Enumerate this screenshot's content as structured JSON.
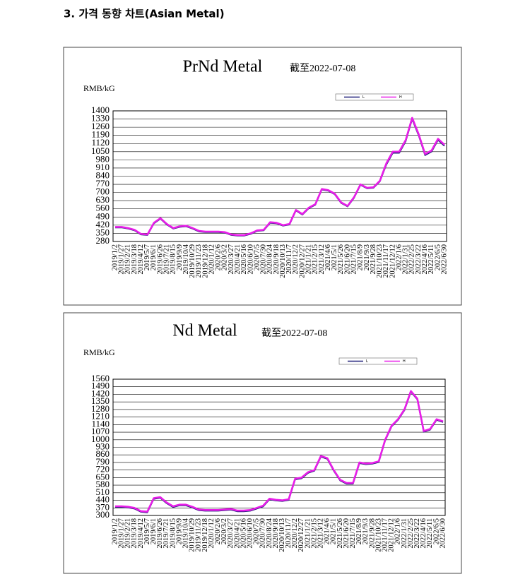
{
  "heading": "3. 가격 동향 차트(Asian Metal)",
  "chart_data": [
    {
      "type": "line",
      "title": "PrNd Metal",
      "subtitle": "截至2022-07-08",
      "y_label": "RMB/kG",
      "categories": [
        "2019/1/2",
        "2019/1/27",
        "2019/2/21",
        "2019/3/18",
        "2019/4/12",
        "2019/5/7",
        "2019/6/1",
        "2019/6/26",
        "2019/7/21",
        "2019/8/15",
        "2019/9/9",
        "2019/10/4",
        "2019/10/29",
        "2019/11/23",
        "2019/12/18",
        "2020/1/12",
        "2020/2/6",
        "2020/3/2",
        "2020/3/27",
        "2020/4/21",
        "2020/5/16",
        "2020/6/10",
        "2020/7/5",
        "2020/7/30",
        "2020/8/24",
        "2020/9/18",
        "2020/10/13",
        "2020/11/7",
        "2020/12/2",
        "2020/12/27",
        "2021/1/21",
        "2021/2/15",
        "2021/3/12",
        "2021/4/6",
        "2021/5/1",
        "2021/5/26",
        "2021/6/20",
        "2021/7/15",
        "2021/8/9",
        "2021/9/3",
        "2021/9/28",
        "2021/10/23",
        "2021/11/17",
        "2021/12/12",
        "2022/1/6",
        "2022/1/31",
        "2022/2/25",
        "2022/3/22",
        "2022/4/16",
        "2022/5/11",
        "2022/6/5",
        "2022/6/30"
      ],
      "series": [
        {
          "name": "L",
          "color": "#1c1c78",
          "values": [
            400,
            400,
            390,
            375,
            340,
            335,
            435,
            475,
            425,
            390,
            405,
            410,
            390,
            365,
            360,
            360,
            360,
            355,
            335,
            330,
            330,
            345,
            370,
            375,
            440,
            435,
            415,
            425,
            545,
            510,
            565,
            595,
            725,
            715,
            685,
            610,
            580,
            655,
            765,
            735,
            740,
            795,
            940,
            1040,
            1040,
            1140,
            1330,
            1190,
            1020,
            1050,
            1150,
            1100
          ]
        },
        {
          "name": "H",
          "color": "#e81ee8",
          "values": [
            405,
            405,
            395,
            380,
            345,
            340,
            440,
            480,
            430,
            395,
            410,
            415,
            395,
            370,
            365,
            365,
            365,
            360,
            340,
            335,
            335,
            350,
            375,
            380,
            445,
            440,
            420,
            430,
            550,
            515,
            570,
            600,
            730,
            720,
            690,
            615,
            585,
            660,
            770,
            740,
            745,
            800,
            950,
            1050,
            1050,
            1150,
            1340,
            1200,
            1030,
            1060,
            1160,
            1110
          ]
        }
      ],
      "ylim": [
        280,
        1400
      ],
      "yticks": [
        280,
        350,
        420,
        490,
        560,
        630,
        700,
        770,
        840,
        910,
        980,
        1050,
        1120,
        1190,
        1260,
        1330,
        1400
      ],
      "grid": true
    },
    {
      "type": "line",
      "title": "Nd Metal",
      "subtitle": "截至2022-07-08",
      "y_label": "RMB/kG",
      "categories": [
        "2019/1/2",
        "2019/1/27",
        "2019/2/21",
        "2019/3/18",
        "2019/4/12",
        "2019/5/7",
        "2019/6/1",
        "2019/6/26",
        "2019/7/21",
        "2019/8/15",
        "2019/9/9",
        "2019/10/4",
        "2019/10/29",
        "2019/11/23",
        "2019/12/18",
        "2020/1/12",
        "2020/2/6",
        "2020/3/2",
        "2020/3/27",
        "2020/4/21",
        "2020/5/16",
        "2020/6/10",
        "2020/7/5",
        "2020/7/30",
        "2020/8/24",
        "2020/9/18",
        "2020/10/13",
        "2020/11/7",
        "2020/12/2",
        "2020/12/27",
        "2021/1/21",
        "2021/2/15",
        "2021/3/12",
        "2021/4/6",
        "2021/5/1",
        "2021/5/26",
        "2021/6/20",
        "2021/7/15",
        "2021/8/9",
        "2021/9/3",
        "2021/9/28",
        "2021/10/23",
        "2021/11/17",
        "2021/12/12",
        "2022/1/6",
        "2022/1/31",
        "2022/2/25",
        "2022/3/22",
        "2022/4/16",
        "2022/5/11",
        "2022/6/5",
        "2022/6/30"
      ],
      "series": [
        {
          "name": "L",
          "color": "#1c1c78",
          "values": [
            378,
            378,
            373,
            363,
            333,
            328,
            453,
            463,
            413,
            378,
            393,
            393,
            373,
            348,
            343,
            343,
            343,
            348,
            353,
            338,
            338,
            343,
            363,
            383,
            448,
            438,
            433,
            443,
            633,
            643,
            693,
            713,
            843,
            823,
            713,
            623,
            593,
            593,
            783,
            773,
            778,
            793,
            993,
            1123,
            1183,
            1273,
            1443,
            1373,
            1073,
            1093,
            1183,
            1163
          ]
        },
        {
          "name": "H",
          "color": "#e81ee8",
          "values": [
            385,
            385,
            380,
            370,
            340,
            335,
            460,
            470,
            420,
            385,
            400,
            400,
            380,
            355,
            350,
            350,
            350,
            355,
            360,
            345,
            345,
            350,
            370,
            390,
            455,
            445,
            440,
            450,
            640,
            650,
            700,
            720,
            850,
            830,
            720,
            630,
            600,
            600,
            790,
            780,
            785,
            800,
            1000,
            1130,
            1190,
            1280,
            1450,
            1380,
            1080,
            1100,
            1190,
            1170
          ]
        }
      ],
      "ylim": [
        300,
        1560
      ],
      "yticks": [
        300,
        370,
        440,
        510,
        580,
        650,
        720,
        790,
        860,
        930,
        1000,
        1070,
        1140,
        1210,
        1280,
        1350,
        1420,
        1490,
        1560
      ],
      "grid": true
    }
  ]
}
